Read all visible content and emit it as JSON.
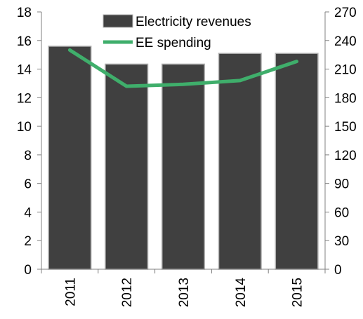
{
  "chart_data": {
    "type": "bar",
    "categories": [
      "2011",
      "2012",
      "2013",
      "2014",
      "2015"
    ],
    "series": [
      {
        "name": "Electricity revenues",
        "kind": "bar",
        "axis": "left",
        "color": "#404040",
        "values": [
          15.6,
          14.35,
          14.35,
          15.1,
          15.1
        ]
      },
      {
        "name": "EE spending",
        "kind": "line",
        "axis": "right",
        "color": "#3fae6b",
        "values": [
          230,
          192,
          194,
          198,
          218
        ]
      }
    ],
    "ylim_left": [
      0,
      18
    ],
    "yticks_left": [
      "0",
      "2",
      "4",
      "6",
      "8",
      "10",
      "12",
      "14",
      "16",
      "18"
    ],
    "ylim_right": [
      0,
      270
    ],
    "yticks_right": [
      "0",
      "30",
      "60",
      "90",
      "120",
      "150",
      "180",
      "210",
      "240",
      "270"
    ],
    "grid": false,
    "legend_position": "top-center",
    "title": "",
    "xlabel": "",
    "ylabel_left": "",
    "ylabel_right": ""
  }
}
